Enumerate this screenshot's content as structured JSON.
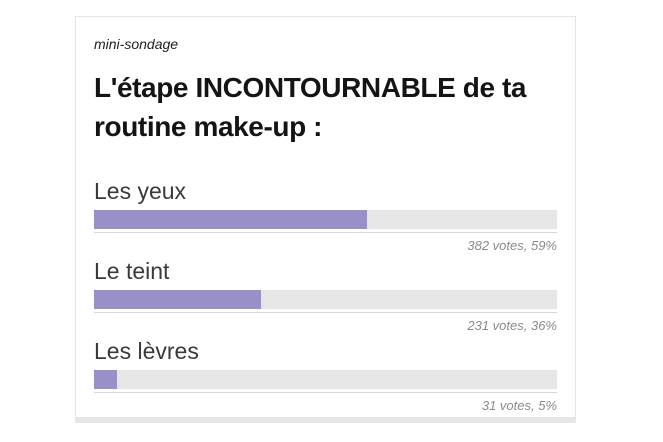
{
  "poll": {
    "kicker": "mini-sondage",
    "title": "L'étape INCONTOURNABLE de ta routine make-up :",
    "options": [
      {
        "label": "Les yeux",
        "votes": 382,
        "percent": 59,
        "votes_text": "382 votes, 59%"
      },
      {
        "label": "Le teint",
        "votes": 231,
        "percent": 36,
        "votes_text": "231 votes, 36%"
      },
      {
        "label": "Les lèvres",
        "votes": 31,
        "percent": 5,
        "votes_text": "31 votes, 5%"
      }
    ],
    "colors": {
      "bar_fill": "#9a90c8",
      "bar_track": "#e6e6e6",
      "separator": "#d8d8d8",
      "votes_text": "#8a8a8a",
      "card_border": "#e5e5e5",
      "title_text": "#141414",
      "label_text": "#3a3a3a"
    }
  },
  "chart_data": {
    "type": "bar",
    "orientation": "horizontal",
    "title": "L'étape INCONTOURNABLE de ta routine make-up :",
    "kicker": "mini-sondage",
    "categories": [
      "Les yeux",
      "Le teint",
      "Les lèvres"
    ],
    "series": [
      {
        "name": "votes",
        "values": [
          382,
          231,
          31
        ]
      },
      {
        "name": "percent",
        "values": [
          59,
          36,
          5
        ]
      }
    ],
    "data_labels": [
      "382 votes, 59%",
      "231 votes, 36%",
      "31 votes, 5%"
    ],
    "xlim": [
      0,
      100
    ],
    "grid": false,
    "legend": "none",
    "bar_color": "#9a90c8",
    "track_color": "#e6e6e6"
  }
}
